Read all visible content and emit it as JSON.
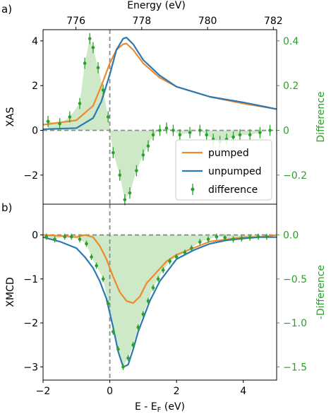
{
  "colors": {
    "pumped": "#f0892a",
    "unpumped": "#2a79b5",
    "difference": "#2ca02c",
    "fill": "#b9e0b0",
    "zero_line": "#8c8c8c",
    "axis": "#000000"
  },
  "legend": {
    "placement": "lower right of panel a",
    "entries": [
      "pumped",
      "unpumped",
      "difference"
    ]
  },
  "chart_data": [
    {
      "panel_label": "a)",
      "type": "line",
      "top_xlabel": "Energy (eV)",
      "top_xticks": [
        "776",
        "778",
        "780",
        "782"
      ],
      "top_xlim": [
        775.0,
        782.1
      ],
      "ylabel": "XAS",
      "ylim": [
        -3.3,
        4.5
      ],
      "yticks": [
        {
          "value": -2,
          "label": "−2"
        },
        {
          "value": 0,
          "label": "0"
        },
        {
          "value": 2,
          "label": "2"
        },
        {
          "value": 4,
          "label": "4"
        }
      ],
      "ylabel_right": "Difference",
      "ylim_right": [
        -0.33,
        0.45
      ],
      "yticks_right": [
        {
          "value": -0.2,
          "label": "−0.2"
        },
        {
          "value": 0,
          "label": "0"
        },
        {
          "value": 0.2,
          "label": "0.2"
        },
        {
          "value": 0.4,
          "label": "0.4"
        }
      ],
      "xlim": [
        -2,
        5
      ],
      "grid": false,
      "series": [
        {
          "name": "pumped",
          "axis": "left",
          "x": [
            -2.0,
            -1.0,
            -0.5,
            -0.25,
            0.0,
            0.2,
            0.4,
            0.5,
            0.7,
            1.0,
            1.5,
            2.0,
            3.0,
            4.0,
            5.0
          ],
          "y": [
            0.25,
            0.45,
            1.1,
            2.0,
            3.0,
            3.6,
            3.85,
            3.88,
            3.6,
            3.0,
            2.35,
            1.95,
            1.5,
            1.2,
            0.95
          ]
        },
        {
          "name": "unpumped",
          "axis": "left",
          "x": [
            -2.0,
            -1.0,
            -0.5,
            -0.25,
            0.0,
            0.2,
            0.4,
            0.5,
            0.7,
            1.0,
            1.5,
            2.0,
            3.0,
            4.0,
            5.0
          ],
          "y": [
            0.05,
            0.1,
            0.55,
            1.3,
            2.5,
            3.6,
            4.1,
            4.15,
            3.85,
            3.15,
            2.45,
            1.95,
            1.5,
            1.25,
            0.95
          ]
        },
        {
          "name": "difference",
          "axis": "right",
          "style": "errorbar",
          "x": [
            -1.85,
            -1.5,
            -1.2,
            -0.9,
            -0.75,
            -0.6,
            -0.5,
            -0.35,
            -0.2,
            -0.05,
            0.1,
            0.3,
            0.45,
            0.6,
            0.8,
            1.0,
            1.15,
            1.3,
            1.5,
            1.7,
            1.9,
            2.1,
            2.4,
            2.7,
            2.9,
            3.1,
            3.3,
            3.5,
            3.7,
            3.9,
            4.2,
            4.5,
            4.8
          ],
          "y": [
            0.04,
            0.03,
            0.06,
            0.12,
            0.3,
            0.41,
            0.37,
            0.28,
            0.18,
            0.06,
            -0.1,
            -0.2,
            -0.31,
            -0.28,
            -0.18,
            -0.11,
            -0.07,
            -0.02,
            0.0,
            0.01,
            0.0,
            -0.02,
            -0.01,
            0.0,
            -0.02,
            -0.04,
            -0.05,
            -0.04,
            -0.03,
            -0.02,
            -0.02,
            -0.01,
            0.0
          ],
          "err": 0.025
        }
      ]
    },
    {
      "panel_label": "b)",
      "type": "line",
      "xlabel": "E - E_F (eV)",
      "xlabel_parts": [
        "E - E",
        "F",
        " (eV)"
      ],
      "xticks": [
        {
          "value": -2,
          "label": "−2"
        },
        {
          "value": 0,
          "label": "0"
        },
        {
          "value": 2,
          "label": "2"
        },
        {
          "value": 4,
          "label": "4"
        }
      ],
      "xlim": [
        -2,
        5
      ],
      "ylabel": "XMCD",
      "ylim": [
        -3.3,
        0.7
      ],
      "yticks": [
        {
          "value": -3,
          "label": "−3"
        },
        {
          "value": -2,
          "label": "−2"
        },
        {
          "value": -1,
          "label": "−1"
        },
        {
          "value": 0,
          "label": "0"
        }
      ],
      "ylabel_right": "-Difference",
      "ylim_right": [
        -1.65,
        0.35
      ],
      "yticks_right": [
        {
          "value": -1.5,
          "label": "−1.5"
        },
        {
          "value": -1.0,
          "label": "−1.0"
        },
        {
          "value": -0.5,
          "label": "−0.5"
        },
        {
          "value": 0.0,
          "label": "0.0"
        }
      ],
      "grid": false,
      "series": [
        {
          "name": "pumped",
          "axis": "left",
          "x": [
            -2.0,
            -1.5,
            -1.0,
            -0.75,
            -0.5,
            -0.3,
            -0.1,
            0.1,
            0.3,
            0.5,
            0.7,
            0.9,
            1.1,
            1.4,
            1.7,
            2.0,
            2.5,
            3.0,
            3.5,
            4.0,
            4.5,
            5.0
          ],
          "y": [
            0.0,
            -0.02,
            -0.05,
            0.0,
            -0.05,
            -0.25,
            -0.55,
            -0.95,
            -1.3,
            -1.5,
            -1.55,
            -1.4,
            -1.1,
            -0.85,
            -0.6,
            -0.45,
            -0.3,
            -0.15,
            -0.1,
            -0.05,
            -0.05,
            0.0
          ]
        },
        {
          "name": "unpumped",
          "axis": "left",
          "x": [
            -2.0,
            -1.5,
            -1.0,
            -0.75,
            -0.5,
            -0.3,
            -0.1,
            0.1,
            0.25,
            0.4,
            0.55,
            0.7,
            0.85,
            1.0,
            1.2,
            1.5,
            1.8,
            2.0,
            2.5,
            3.0,
            3.5,
            4.0,
            4.5,
            5.0
          ],
          "y": [
            -0.05,
            -0.15,
            -0.3,
            -0.5,
            -0.75,
            -1.05,
            -1.45,
            -2.1,
            -2.65,
            -3.0,
            -2.95,
            -2.6,
            -2.2,
            -1.9,
            -1.5,
            -1.05,
            -0.75,
            -0.55,
            -0.35,
            -0.2,
            -0.12,
            -0.08,
            -0.05,
            -0.05
          ]
        },
        {
          "name": "difference",
          "axis": "right",
          "style": "errorbar",
          "x": [
            -1.9,
            -1.65,
            -1.35,
            -1.15,
            -0.9,
            -0.7,
            -0.55,
            -0.4,
            -0.2,
            -0.05,
            0.1,
            0.25,
            0.4,
            0.55,
            0.7,
            0.85,
            1.0,
            1.15,
            1.3,
            1.45,
            1.6,
            1.8,
            2.0,
            2.25,
            2.45,
            2.7,
            2.95,
            3.2,
            3.45,
            3.7,
            3.95,
            4.2,
            4.45,
            4.7
          ],
          "y": [
            -0.02,
            -0.05,
            -0.02,
            -0.02,
            -0.05,
            -0.1,
            -0.25,
            -0.35,
            -0.5,
            -0.78,
            -1.1,
            -1.3,
            -1.5,
            -1.4,
            -1.25,
            -1.05,
            -0.9,
            -0.75,
            -0.6,
            -0.5,
            -0.4,
            -0.3,
            -0.25,
            -0.2,
            -0.15,
            -0.08,
            -0.05,
            -0.02,
            -0.03,
            -0.05,
            -0.04,
            -0.03,
            -0.02,
            -0.02
          ],
          "err": 0.035
        }
      ]
    }
  ]
}
